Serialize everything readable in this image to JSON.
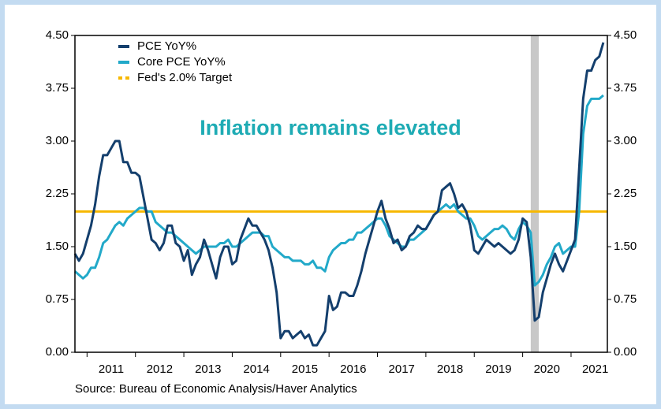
{
  "chart_data": {
    "type": "line",
    "annotation": "Inflation remains elevated",
    "source": "Source:  Bureau of Economic Analysis/Haver Analytics",
    "xlim": [
      2010.75,
      2021.75
    ],
    "xticks": [
      {
        "value": 2011,
        "label": "2011"
      },
      {
        "value": 2012,
        "label": "2012"
      },
      {
        "value": 2013,
        "label": "2013"
      },
      {
        "value": 2014,
        "label": "2014"
      },
      {
        "value": 2015,
        "label": "2015"
      },
      {
        "value": 2016,
        "label": "2016"
      },
      {
        "value": 2017,
        "label": "2017"
      },
      {
        "value": 2018,
        "label": "2018"
      },
      {
        "value": 2019,
        "label": "2019"
      },
      {
        "value": 2020,
        "label": "2020"
      },
      {
        "value": 2021,
        "label": "2021"
      }
    ],
    "ylim": [
      0,
      4.5
    ],
    "yticks": [
      {
        "value": 0,
        "label": "0.00"
      },
      {
        "value": 0.75,
        "label": "0.75"
      },
      {
        "value": 1.5,
        "label": "1.50"
      },
      {
        "value": 2.25,
        "label": "2.25"
      },
      {
        "value": 3,
        "label": "3.00"
      },
      {
        "value": 3.75,
        "label": "3.75"
      },
      {
        "value": 4.5,
        "label": "4.50"
      }
    ],
    "legend": "upper left",
    "shaded_span": {
      "from": 2020.167,
      "to": 2020.333,
      "color": "#c8c8c8"
    },
    "reference_line": {
      "name": "Fed's 2.0% Target",
      "value": 2.0,
      "color": "#f7b800"
    },
    "x": [
      2010.75,
      2010.833,
      2010.917,
      2011,
      2011.083,
      2011.167,
      2011.25,
      2011.333,
      2011.417,
      2011.5,
      2011.583,
      2011.667,
      2011.75,
      2011.833,
      2011.917,
      2012,
      2012.083,
      2012.167,
      2012.25,
      2012.333,
      2012.417,
      2012.5,
      2012.583,
      2012.667,
      2012.75,
      2012.833,
      2012.917,
      2013,
      2013.083,
      2013.167,
      2013.25,
      2013.333,
      2013.417,
      2013.5,
      2013.583,
      2013.667,
      2013.75,
      2013.833,
      2013.917,
      2014,
      2014.083,
      2014.167,
      2014.25,
      2014.333,
      2014.417,
      2014.5,
      2014.583,
      2014.667,
      2014.75,
      2014.833,
      2014.917,
      2015,
      2015.083,
      2015.167,
      2015.25,
      2015.333,
      2015.417,
      2015.5,
      2015.583,
      2015.667,
      2015.75,
      2015.833,
      2015.917,
      2016,
      2016.083,
      2016.167,
      2016.25,
      2016.333,
      2016.417,
      2016.5,
      2016.583,
      2016.667,
      2016.75,
      2016.833,
      2016.917,
      2017,
      2017.083,
      2017.167,
      2017.25,
      2017.333,
      2017.417,
      2017.5,
      2017.583,
      2017.667,
      2017.75,
      2017.833,
      2017.917,
      2018,
      2018.083,
      2018.167,
      2018.25,
      2018.333,
      2018.417,
      2018.5,
      2018.583,
      2018.667,
      2018.75,
      2018.833,
      2018.917,
      2019,
      2019.083,
      2019.167,
      2019.25,
      2019.333,
      2019.417,
      2019.5,
      2019.583,
      2019.667,
      2019.75,
      2019.833,
      2019.917,
      2020,
      2020.083,
      2020.167,
      2020.25,
      2020.333,
      2020.417,
      2020.5,
      2020.583,
      2020.667,
      2020.75,
      2020.833,
      2020.917,
      2021,
      2021.083,
      2021.167,
      2021.25,
      2021.333,
      2021.417,
      2021.5,
      2021.583,
      2021.667
    ],
    "series": [
      {
        "name": "PCE YoY%",
        "color": "#143f6d",
        "values": [
          1.4,
          1.3,
          1.4,
          1.6,
          1.8,
          2.1,
          2.5,
          2.8,
          2.8,
          2.9,
          3.0,
          3.0,
          2.7,
          2.7,
          2.55,
          2.55,
          2.5,
          2.2,
          1.9,
          1.6,
          1.55,
          1.45,
          1.55,
          1.8,
          1.8,
          1.55,
          1.5,
          1.3,
          1.45,
          1.1,
          1.25,
          1.35,
          1.6,
          1.45,
          1.25,
          1.05,
          1.35,
          1.5,
          1.5,
          1.25,
          1.3,
          1.6,
          1.75,
          1.9,
          1.8,
          1.8,
          1.7,
          1.6,
          1.45,
          1.2,
          0.85,
          0.2,
          0.3,
          0.3,
          0.2,
          0.25,
          0.3,
          0.2,
          0.25,
          0.1,
          0.1,
          0.2,
          0.3,
          0.8,
          0.6,
          0.65,
          0.85,
          0.85,
          0.8,
          0.8,
          0.95,
          1.15,
          1.4,
          1.6,
          1.8,
          2.0,
          2.15,
          1.9,
          1.75,
          1.55,
          1.6,
          1.45,
          1.5,
          1.65,
          1.7,
          1.8,
          1.75,
          1.75,
          1.85,
          1.95,
          2.0,
          2.3,
          2.35,
          2.4,
          2.25,
          2.05,
          2.1,
          2.0,
          1.8,
          1.45,
          1.4,
          1.5,
          1.6,
          1.55,
          1.5,
          1.55,
          1.5,
          1.45,
          1.4,
          1.45,
          1.6,
          1.9,
          1.85,
          1.35,
          0.45,
          0.5,
          0.85,
          1.05,
          1.25,
          1.4,
          1.25,
          1.15,
          1.3,
          1.45,
          1.6,
          2.6,
          3.6,
          4.0,
          4.0,
          4.15,
          4.2,
          4.4
        ]
      },
      {
        "name": "Core PCE YoY%",
        "color": "#22a9c9",
        "values": [
          1.15,
          1.1,
          1.05,
          1.1,
          1.2,
          1.2,
          1.35,
          1.55,
          1.6,
          1.7,
          1.8,
          1.85,
          1.8,
          1.9,
          1.95,
          2.0,
          2.05,
          2.05,
          2.0,
          2.0,
          1.85,
          1.8,
          1.75,
          1.7,
          1.7,
          1.65,
          1.6,
          1.55,
          1.5,
          1.45,
          1.4,
          1.45,
          1.5,
          1.5,
          1.5,
          1.5,
          1.55,
          1.55,
          1.6,
          1.5,
          1.5,
          1.55,
          1.6,
          1.65,
          1.7,
          1.7,
          1.7,
          1.65,
          1.65,
          1.5,
          1.45,
          1.4,
          1.35,
          1.35,
          1.3,
          1.3,
          1.3,
          1.25,
          1.25,
          1.3,
          1.2,
          1.2,
          1.15,
          1.35,
          1.45,
          1.5,
          1.55,
          1.55,
          1.6,
          1.6,
          1.7,
          1.7,
          1.75,
          1.8,
          1.85,
          1.9,
          1.9,
          1.8,
          1.65,
          1.6,
          1.55,
          1.5,
          1.5,
          1.6,
          1.6,
          1.65,
          1.7,
          1.75,
          1.85,
          1.95,
          2.0,
          2.05,
          2.1,
          2.05,
          2.1,
          2.0,
          1.95,
          1.9,
          1.9,
          1.8,
          1.65,
          1.6,
          1.65,
          1.7,
          1.75,
          1.75,
          1.8,
          1.75,
          1.65,
          1.6,
          1.75,
          1.85,
          1.8,
          1.7,
          0.95,
          1.0,
          1.1,
          1.25,
          1.35,
          1.5,
          1.55,
          1.4,
          1.45,
          1.5,
          1.5,
          2.0,
          3.1,
          3.5,
          3.6,
          3.6,
          3.6,
          3.65
        ]
      }
    ]
  }
}
